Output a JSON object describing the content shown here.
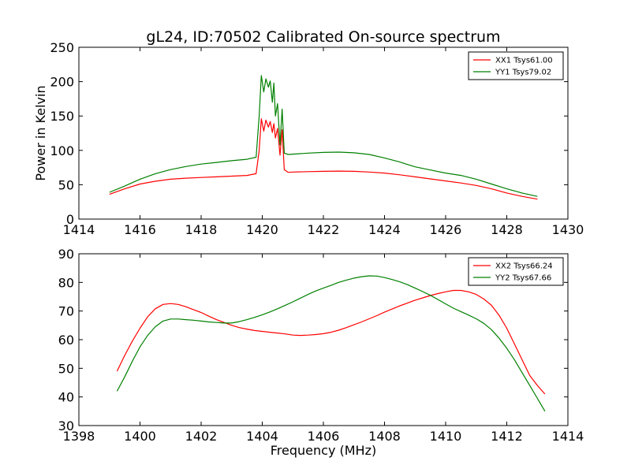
{
  "figure": {
    "title": "gL24, ID:70502 Calibrated On-source spectrum"
  },
  "chart_data": [
    {
      "type": "line",
      "title": "gL24, ID:70502 Calibrated On-source spectrum",
      "xlabel": "",
      "ylabel": "Power in Kelvin",
      "xlim": [
        1414,
        1430
      ],
      "ylim": [
        0,
        250
      ],
      "xticks": [
        1414,
        1416,
        1418,
        1420,
        1422,
        1424,
        1426,
        1428,
        1430
      ],
      "yticks": [
        0,
        50,
        100,
        150,
        200,
        250
      ],
      "grid": false,
      "legend_position": "top-right",
      "series": [
        {
          "name": "XX1 Tsys61.00",
          "color": "#ff0000",
          "x": [
            1415.0,
            1415.5,
            1416.0,
            1416.5,
            1417.0,
            1417.5,
            1418.0,
            1418.5,
            1419.0,
            1419.5,
            1419.8,
            1419.9,
            1419.97,
            1420.05,
            1420.12,
            1420.2,
            1420.26,
            1420.33,
            1420.38,
            1420.43,
            1420.5,
            1420.58,
            1420.65,
            1420.72,
            1420.85,
            1421.0,
            1421.5,
            1422.0,
            1422.5,
            1423.0,
            1423.5,
            1424.0,
            1424.5,
            1425.0,
            1425.5,
            1426.0,
            1426.5,
            1427.0,
            1427.5,
            1428.0,
            1428.5,
            1429.0
          ],
          "values": [
            36,
            44,
            51,
            55,
            58,
            59.5,
            60.5,
            61.5,
            62.5,
            63.5,
            66,
            100,
            146,
            128,
            144,
            134,
            142,
            126,
            139,
            118,
            132,
            93,
            130,
            72,
            68,
            68.5,
            69,
            69.5,
            69.8,
            69.5,
            68.5,
            67,
            64.5,
            61.5,
            58.5,
            55.5,
            52.5,
            49,
            44,
            38,
            33,
            29
          ]
        },
        {
          "name": "YY1 Tsys79.02",
          "color": "#008000",
          "x": [
            1415.0,
            1415.5,
            1416.0,
            1416.5,
            1417.0,
            1417.5,
            1418.0,
            1418.5,
            1419.0,
            1419.5,
            1419.8,
            1419.9,
            1419.97,
            1420.05,
            1420.12,
            1420.2,
            1420.26,
            1420.33,
            1420.38,
            1420.43,
            1420.5,
            1420.58,
            1420.65,
            1420.72,
            1420.85,
            1421.0,
            1421.5,
            1422.0,
            1422.5,
            1423.0,
            1423.5,
            1424.0,
            1424.5,
            1425.0,
            1425.5,
            1426.0,
            1426.5,
            1427.0,
            1427.5,
            1428.0,
            1428.5,
            1429.0
          ],
          "values": [
            39,
            48,
            58,
            66,
            72,
            76.5,
            80,
            82.5,
            85,
            87,
            90,
            150,
            209,
            185,
            204,
            192,
            201,
            170,
            198,
            150,
            168,
            108,
            160,
            96,
            94,
            94.5,
            96,
            97,
            97.5,
            96.5,
            94,
            89,
            83,
            76,
            71.5,
            67,
            63.5,
            58,
            51,
            44,
            38,
            33
          ]
        }
      ]
    },
    {
      "type": "line",
      "title": "",
      "xlabel": "Frequency (MHz)",
      "ylabel": "",
      "xlim": [
        1398,
        1414
      ],
      "ylim": [
        30,
        90
      ],
      "xticks": [
        1398,
        1400,
        1402,
        1404,
        1406,
        1408,
        1410,
        1412,
        1414
      ],
      "yticks": [
        30,
        40,
        50,
        60,
        70,
        80,
        90
      ],
      "grid": false,
      "legend_position": "top-right",
      "series": [
        {
          "name": "XX2 Tsys66.24",
          "color": "#ff0000",
          "x": [
            1399.25,
            1399.5,
            1399.75,
            1400.0,
            1400.25,
            1400.5,
            1400.75,
            1401.0,
            1401.25,
            1401.5,
            1401.75,
            1402.0,
            1402.25,
            1402.5,
            1402.75,
            1403.0,
            1403.25,
            1403.5,
            1403.75,
            1404.0,
            1404.25,
            1404.5,
            1404.75,
            1405.0,
            1405.25,
            1405.5,
            1405.75,
            1406.0,
            1406.25,
            1406.5,
            1406.75,
            1407.0,
            1407.25,
            1407.5,
            1407.75,
            1408.0,
            1408.25,
            1408.5,
            1408.75,
            1409.0,
            1409.25,
            1409.5,
            1409.75,
            1410.0,
            1410.25,
            1410.5,
            1410.75,
            1411.0,
            1411.25,
            1411.5,
            1411.75,
            1412.0,
            1412.25,
            1412.5,
            1412.75,
            1413.0,
            1413.25
          ],
          "values": [
            49,
            54.5,
            59.5,
            64,
            68,
            70.8,
            72.3,
            72.6,
            72.3,
            71.5,
            70.5,
            69.5,
            68.2,
            67,
            66,
            65,
            64.2,
            63.7,
            63.2,
            62.9,
            62.6,
            62.3,
            62,
            61.6,
            61.5,
            61.6,
            61.8,
            62.1,
            62.6,
            63.3,
            64.2,
            65.2,
            66.2,
            67.3,
            68.4,
            69.6,
            70.7,
            71.8,
            72.8,
            73.8,
            74.6,
            75.4,
            76.1,
            76.7,
            77.2,
            77.2,
            76.7,
            75.8,
            74.2,
            72,
            68.5,
            64,
            58.5,
            53,
            47.5,
            44,
            41
          ]
        },
        {
          "name": "YY2 Tsys67.66",
          "color": "#008000",
          "x": [
            1399.25,
            1399.5,
            1399.75,
            1400.0,
            1400.25,
            1400.5,
            1400.75,
            1401.0,
            1401.25,
            1401.5,
            1401.75,
            1402.0,
            1402.25,
            1402.5,
            1402.75,
            1403.0,
            1403.25,
            1403.5,
            1403.75,
            1404.0,
            1404.25,
            1404.5,
            1404.75,
            1405.0,
            1405.25,
            1405.5,
            1405.75,
            1406.0,
            1406.25,
            1406.5,
            1406.75,
            1407.0,
            1407.25,
            1407.5,
            1407.75,
            1408.0,
            1408.25,
            1408.5,
            1408.75,
            1409.0,
            1409.25,
            1409.5,
            1409.75,
            1410.0,
            1410.25,
            1410.5,
            1410.75,
            1411.0,
            1411.25,
            1411.5,
            1411.75,
            1412.0,
            1412.25,
            1412.5,
            1412.75,
            1413.0,
            1413.25
          ],
          "values": [
            42,
            47,
            52.5,
            57.5,
            61.5,
            64.5,
            66.5,
            67.2,
            67.2,
            67,
            66.8,
            66.5,
            66.2,
            66,
            65.8,
            65.8,
            66.3,
            67,
            67.8,
            68.7,
            69.7,
            70.8,
            72,
            73.2,
            74.5,
            75.8,
            77,
            78,
            79,
            80,
            80.8,
            81.5,
            82,
            82.3,
            82.2,
            81.7,
            81,
            80.2,
            79.2,
            78,
            76.8,
            75.5,
            74,
            72.5,
            71,
            69.8,
            68.6,
            67.3,
            65.7,
            63.5,
            60.5,
            57,
            53,
            48.5,
            44,
            39.5,
            35
          ]
        }
      ]
    }
  ]
}
